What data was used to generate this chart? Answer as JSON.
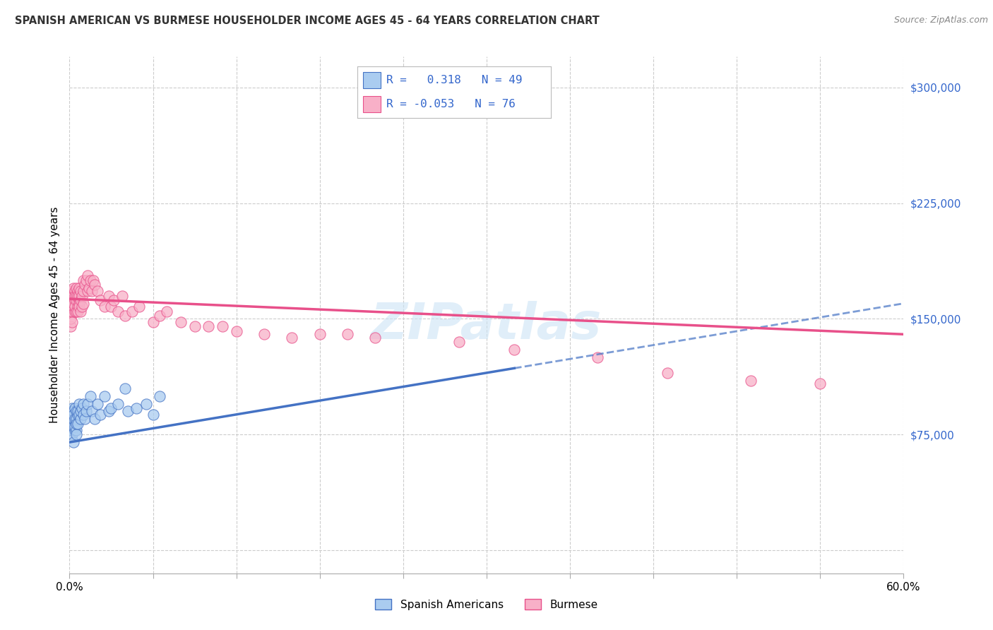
{
  "title": "SPANISH AMERICAN VS BURMESE HOUSEHOLDER INCOME AGES 45 - 64 YEARS CORRELATION CHART",
  "source": "Source: ZipAtlas.com",
  "ylabel": "Householder Income Ages 45 - 64 years",
  "xlim": [
    0.0,
    0.6
  ],
  "ylim": [
    -15000,
    320000
  ],
  "r_spanish": 0.318,
  "n_spanish": 49,
  "r_burmese": -0.053,
  "n_burmese": 76,
  "spanish_color": "#aaccf0",
  "burmese_color": "#f8b0c8",
  "spanish_line_color": "#4472c4",
  "burmese_line_color": "#e8508a",
  "legend_text_color": "#3366cc",
  "watermark": "ZIPatlas",
  "spanish_x": [
    0.001,
    0.001,
    0.001,
    0.002,
    0.002,
    0.002,
    0.002,
    0.003,
    0.003,
    0.003,
    0.003,
    0.003,
    0.004,
    0.004,
    0.004,
    0.004,
    0.005,
    0.005,
    0.005,
    0.005,
    0.005,
    0.006,
    0.006,
    0.006,
    0.007,
    0.007,
    0.008,
    0.008,
    0.009,
    0.01,
    0.01,
    0.011,
    0.012,
    0.013,
    0.015,
    0.016,
    0.018,
    0.02,
    0.022,
    0.025,
    0.028,
    0.03,
    0.035,
    0.04,
    0.042,
    0.048,
    0.055,
    0.06,
    0.065
  ],
  "spanish_y": [
    85000,
    78000,
    90000,
    82000,
    88000,
    75000,
    92000,
    80000,
    85000,
    90000,
    70000,
    88000,
    85000,
    78000,
    92000,
    80000,
    90000,
    85000,
    78000,
    82000,
    75000,
    88000,
    82000,
    90000,
    88000,
    95000,
    85000,
    90000,
    92000,
    88000,
    95000,
    85000,
    90000,
    95000,
    100000,
    90000,
    85000,
    95000,
    88000,
    100000,
    90000,
    92000,
    95000,
    105000,
    90000,
    92000,
    95000,
    88000,
    100000
  ],
  "burmese_x": [
    0.001,
    0.001,
    0.001,
    0.002,
    0.002,
    0.002,
    0.002,
    0.002,
    0.003,
    0.003,
    0.003,
    0.003,
    0.004,
    0.004,
    0.004,
    0.004,
    0.004,
    0.005,
    0.005,
    0.005,
    0.005,
    0.006,
    0.006,
    0.006,
    0.006,
    0.007,
    0.007,
    0.007,
    0.007,
    0.008,
    0.008,
    0.008,
    0.009,
    0.009,
    0.01,
    0.01,
    0.01,
    0.011,
    0.012,
    0.013,
    0.013,
    0.014,
    0.015,
    0.016,
    0.017,
    0.018,
    0.02,
    0.022,
    0.025,
    0.028,
    0.03,
    0.032,
    0.035,
    0.038,
    0.04,
    0.045,
    0.05,
    0.06,
    0.065,
    0.07,
    0.08,
    0.09,
    0.1,
    0.11,
    0.12,
    0.14,
    0.16,
    0.18,
    0.2,
    0.22,
    0.28,
    0.32,
    0.38,
    0.43,
    0.49,
    0.54
  ],
  "burmese_y": [
    145000,
    158000,
    150000,
    155000,
    162000,
    168000,
    155000,
    148000,
    165000,
    158000,
    170000,
    160000,
    162000,
    168000,
    155000,
    165000,
    158000,
    170000,
    162000,
    155000,
    165000,
    168000,
    158000,
    165000,
    155000,
    170000,
    160000,
    165000,
    158000,
    162000,
    168000,
    155000,
    165000,
    158000,
    168000,
    175000,
    160000,
    172000,
    175000,
    168000,
    178000,
    170000,
    175000,
    168000,
    175000,
    172000,
    168000,
    162000,
    158000,
    165000,
    158000,
    162000,
    155000,
    165000,
    152000,
    155000,
    158000,
    148000,
    152000,
    155000,
    148000,
    145000,
    145000,
    145000,
    142000,
    140000,
    138000,
    140000,
    140000,
    138000,
    135000,
    130000,
    125000,
    115000,
    110000,
    108000
  ]
}
